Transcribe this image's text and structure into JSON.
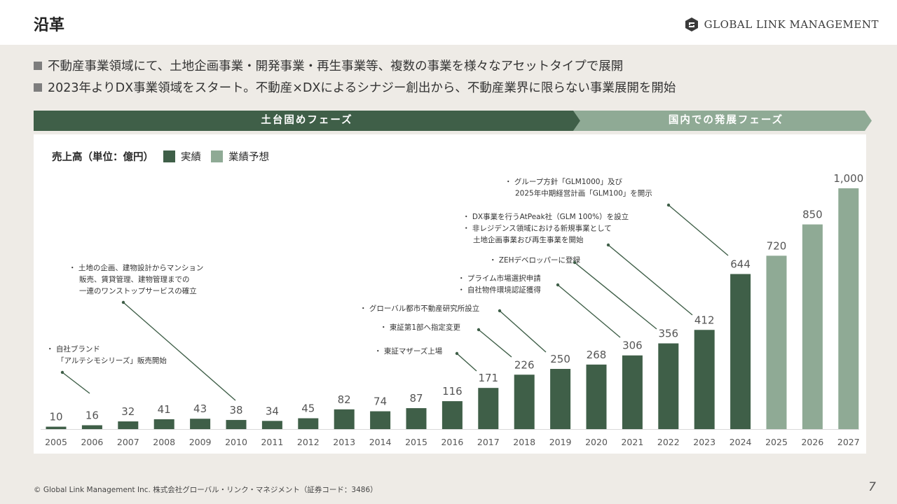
{
  "header": {
    "title": "沿革",
    "logo_text": "GLOBAL LINK MANAGEMENT"
  },
  "bullets": [
    "不動産事業領域にて、土地企画事業・開発事業・再生事業等、複数の事業を様々なアセットタイプで展開",
    "2023年よりDX事業領域をスタート。不動産×DXによるシナジー創出から、不動産業界に限らない事業展開を開始"
  ],
  "phases": {
    "phase1": "土台固めフェーズ",
    "phase2": "国内での発展フェーズ"
  },
  "legend": {
    "title": "売上高（単位：億円）",
    "actual": "実績",
    "forecast": "業績予想"
  },
  "colors": {
    "actual": "#3f5f48",
    "forecast": "#8faa95",
    "phase1": "#3f5f48",
    "phase2": "#8faa95"
  },
  "chart_data": {
    "type": "bar",
    "categories": [
      "2005",
      "2006",
      "2007",
      "2008",
      "2009",
      "2010",
      "2011",
      "2012",
      "2013",
      "2014",
      "2015",
      "2016",
      "2017",
      "2018",
      "2019",
      "2020",
      "2021",
      "2022",
      "2023",
      "2024",
      "2025",
      "2026",
      "2027"
    ],
    "values": [
      10,
      16,
      32,
      41,
      43,
      38,
      34,
      45,
      82,
      74,
      87,
      116,
      171,
      226,
      250,
      268,
      306,
      356,
      412,
      644,
      720,
      850,
      1000
    ],
    "value_labels": [
      "10",
      "16",
      "32",
      "41",
      "43",
      "38",
      "34",
      "45",
      "82",
      "74",
      "87",
      "116",
      "171",
      "226",
      "250",
      "268",
      "306",
      "356",
      "412",
      "644",
      "720",
      "850",
      "1,000"
    ],
    "series_type": [
      "actual",
      "actual",
      "actual",
      "actual",
      "actual",
      "actual",
      "actual",
      "actual",
      "actual",
      "actual",
      "actual",
      "actual",
      "actual",
      "actual",
      "actual",
      "actual",
      "actual",
      "actual",
      "actual",
      "actual",
      "forecast",
      "forecast",
      "forecast"
    ],
    "ylim": [
      0,
      1000
    ],
    "annotations": [
      {
        "category": "2006",
        "lines": [
          "・ 自社ブランド",
          "「アルテシモシリーズ」販売開始"
        ]
      },
      {
        "category": "2010",
        "lines": [
          "・ 土地の企画、建物設計からマンション",
          "販売、賃貸管理、建物管理までの",
          "一連のワンストップサービスの確立"
        ]
      },
      {
        "category": "2017",
        "lines": [
          "・ 東証マザーズ上場"
        ]
      },
      {
        "category": "2018",
        "lines": [
          "・ 東証第1部へ指定変更"
        ]
      },
      {
        "category": "2019",
        "lines": [
          "・ グローバル都市不動産研究所設立"
        ]
      },
      {
        "category": "2021",
        "lines": [
          "・ プライム市場選択申請",
          "・ 自社物件環境認証獲得"
        ]
      },
      {
        "category": "2022",
        "lines": [
          "・ ZEHデベロッパーに登録"
        ]
      },
      {
        "category": "2023",
        "lines": [
          "・ DX事業を行うAtPeak社（GLM 100%）を設立",
          "・ 非レジデンス領域における新規事業として",
          "土地企画事業おび再生事業を開始"
        ]
      },
      {
        "category": "2024",
        "lines": [
          "・ グループ方針「GLM1000」及び",
          "2025年中期経営計画「GLM100」を開示"
        ]
      }
    ]
  },
  "footer": {
    "copyright": "© Global Link Management Inc. 株式会社グローバル・リンク・マネジメント（証券コード：3486）",
    "page": "7"
  }
}
